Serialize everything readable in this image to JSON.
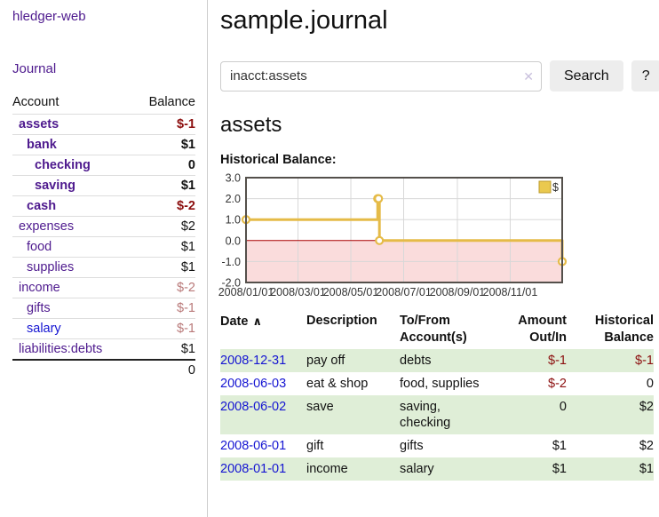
{
  "app": {
    "title": "hledger-web"
  },
  "sidebar": {
    "journal_link": "Journal",
    "accounts_table": {
      "headers": [
        "Account",
        "Balance"
      ],
      "rows": [
        {
          "account": "assets",
          "balance": "$-1",
          "depth": 1,
          "in_filter": true,
          "negative": true
        },
        {
          "account": "bank",
          "balance": "$1",
          "depth": 2,
          "in_filter": true,
          "negative": false
        },
        {
          "account": "checking",
          "balance": "0",
          "depth": 3,
          "in_filter": true,
          "negative": false
        },
        {
          "account": "saving",
          "balance": "$1",
          "depth": 3,
          "in_filter": true,
          "negative": false
        },
        {
          "account": "cash",
          "balance": "$-2",
          "depth": 2,
          "in_filter": true,
          "negative": true
        },
        {
          "account": "expenses",
          "balance": "$2",
          "depth": 1,
          "in_filter": false,
          "negative": false
        },
        {
          "account": "food",
          "balance": "$1",
          "depth": 2,
          "in_filter": false,
          "negative": false
        },
        {
          "account": "supplies",
          "balance": "$1",
          "depth": 2,
          "in_filter": false,
          "negative": false
        },
        {
          "account": "income",
          "balance": "$-2",
          "depth": 1,
          "in_filter": false,
          "negative": true
        },
        {
          "account": "gifts",
          "balance": "$-1",
          "depth": 2,
          "in_filter": false,
          "negative": true
        },
        {
          "account": "salary",
          "balance": "$-1",
          "depth": 2,
          "in_filter": false,
          "negative": true,
          "link_color": "blue"
        },
        {
          "account": "liabilities:debts",
          "balance": "$1",
          "depth": 1,
          "in_filter": false,
          "negative": false
        }
      ],
      "total": "0"
    }
  },
  "main": {
    "title": "sample.journal",
    "search": {
      "value": "inacct:assets",
      "clear_icon": "✕",
      "button_label": "Search",
      "help_label": "?"
    },
    "account_heading": "assets",
    "chart_heading": "Historical Balance:",
    "register": {
      "headers": [
        {
          "label": "Date",
          "sorted": "asc"
        },
        {
          "label": "Description"
        },
        {
          "label": "To/From Account(s)"
        },
        {
          "label": "Amount Out/In"
        },
        {
          "label": "Historical Balance"
        }
      ],
      "sort_icon": "∧",
      "rows": [
        {
          "date": "2008-12-31",
          "description": "pay off",
          "accounts": "debts",
          "amount": "$-1",
          "amount_negative": true,
          "balance": "$-1",
          "balance_negative": true
        },
        {
          "date": "2008-06-03",
          "description": "eat & shop",
          "accounts": "food, supplies",
          "amount": "$-2",
          "amount_negative": true,
          "balance": "0",
          "balance_negative": false
        },
        {
          "date": "2008-06-02",
          "description": "save",
          "accounts": "saving, checking",
          "amount": "0",
          "amount_negative": false,
          "balance": "$2",
          "balance_negative": false
        },
        {
          "date": "2008-06-01",
          "description": "gift",
          "accounts": "gifts",
          "amount": "$1",
          "amount_negative": false,
          "balance": "$2",
          "balance_negative": false
        },
        {
          "date": "2008-01-01",
          "description": "income",
          "accounts": "salary",
          "amount": "$1",
          "amount_negative": false,
          "balance": "$1",
          "balance_negative": false
        }
      ]
    }
  },
  "chart_data": {
    "type": "line",
    "style": "step",
    "title": "Historical Balance:",
    "legend": [
      {
        "label": "$"
      }
    ],
    "legend_position": "top-right",
    "x_min": "2008-01-01",
    "x_max": "2008-12-31",
    "y_min": -2,
    "y_max": 3,
    "y_ticks": [
      "3.0",
      "2.0",
      "1.0",
      "0.0",
      "-1.0",
      "-2.0"
    ],
    "x_ticks": [
      {
        "label": "2008/01/01",
        "date": "2008-01-01"
      },
      {
        "label": "2008/03/01",
        "date": "2008-03-01"
      },
      {
        "label": "2008/05/01",
        "date": "2008-05-01"
      },
      {
        "label": "2008/07/01",
        "date": "2008-07-01"
      },
      {
        "label": "2008/09/01",
        "date": "2008-09-01"
      },
      {
        "label": "2008/11/01",
        "date": "2008-11-01"
      }
    ],
    "series": [
      {
        "name": "$",
        "points": [
          {
            "date": "2008-01-01",
            "value": 1
          },
          {
            "date": "2008-06-01",
            "value": 2
          },
          {
            "date": "2008-06-02",
            "value": 2
          },
          {
            "date": "2008-06-03",
            "value": 0
          },
          {
            "date": "2008-12-31",
            "value": -1
          }
        ]
      }
    ],
    "grid": true,
    "colors": {
      "line": "#e5bb48",
      "marker_fill": "#ffffff",
      "legend_fill": "#eac94f",
      "legend_border": "#bd9c2f",
      "negative_region": "#fadcdc",
      "zero_line": "#aa0000",
      "grid": "#d8d8d8",
      "frame": "#54504b",
      "tick_text": "#333333"
    }
  }
}
